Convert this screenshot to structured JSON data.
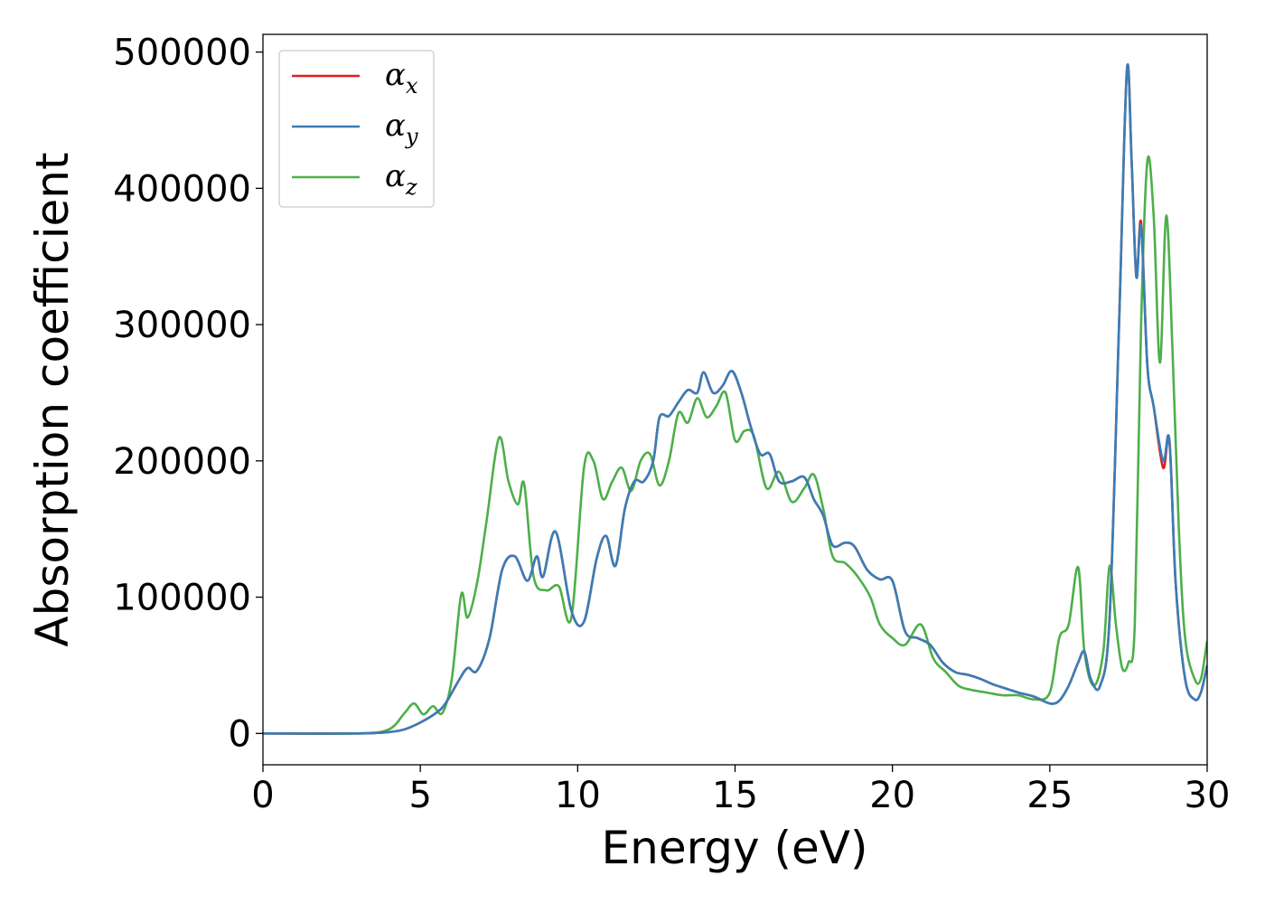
{
  "chart_data": {
    "type": "line",
    "xlabel": "Energy (eV)",
    "ylabel": "Absorption coefficient",
    "xlim": [
      0,
      30
    ],
    "ylim": [
      -23000,
      513000
    ],
    "xticks": [
      0,
      5,
      10,
      15,
      20,
      25,
      30
    ],
    "yticks": [
      0,
      100000,
      200000,
      300000,
      400000,
      500000
    ],
    "grid": false,
    "legend_position": "upper-left",
    "series": [
      {
        "name": "α_x",
        "legend_symbol": "α",
        "legend_subscript": "x",
        "color": "#e41a1c",
        "x": [
          0,
          3,
          4,
          4.5,
          5,
          5.5,
          5.8,
          6.2,
          6.5,
          6.8,
          7.2,
          7.6,
          8,
          8.4,
          8.7,
          8.9,
          9.3,
          9.8,
          10.2,
          10.6,
          10.9,
          11.2,
          11.5,
          11.8,
          12.1,
          12.4,
          12.6,
          12.9,
          13.2,
          13.5,
          13.8,
          14,
          14.3,
          14.6,
          14.9,
          15.2,
          15.5,
          15.8,
          16.1,
          16.4,
          16.8,
          17.2,
          17.5,
          17.8,
          18.1,
          18.5,
          18.8,
          19.2,
          19.6,
          20,
          20.4,
          20.8,
          21.2,
          21.6,
          22,
          22.4,
          22.8,
          23.2,
          23.6,
          24,
          24.5,
          25,
          25.3,
          25.6,
          25.9,
          26.1,
          26.3,
          26.6,
          26.9,
          27.2,
          27.45,
          27.6,
          27.75,
          27.9,
          28.1,
          28.3,
          28.6,
          28.8,
          29,
          29.3,
          29.6,
          29.8,
          30
        ],
        "y": [
          0,
          0,
          1000,
          3000,
          8000,
          15000,
          22000,
          38000,
          48000,
          46000,
          70000,
          120000,
          130000,
          112000,
          130000,
          115000,
          148000,
          90000,
          82000,
          128000,
          145000,
          123000,
          165000,
          185000,
          185000,
          200000,
          232000,
          233000,
          243000,
          252000,
          250000,
          265000,
          250000,
          255000,
          266000,
          250000,
          225000,
          205000,
          205000,
          185000,
          185000,
          188000,
          172000,
          160000,
          138000,
          140000,
          137000,
          120000,
          113000,
          112000,
          75000,
          70000,
          65000,
          52000,
          45000,
          43000,
          40000,
          36000,
          33000,
          30000,
          27000,
          22000,
          24000,
          35000,
          52000,
          60000,
          40000,
          35000,
          85000,
          300000,
          487000,
          420000,
          335000,
          375000,
          270000,
          240000,
          195000,
          215000,
          110000,
          40000,
          25000,
          30000,
          50000
        ]
      },
      {
        "name": "α_y",
        "legend_symbol": "α",
        "legend_subscript": "y",
        "color": "#377eb8",
        "x": [
          0,
          3,
          4,
          4.5,
          5,
          5.5,
          5.8,
          6.2,
          6.5,
          6.8,
          7.2,
          7.6,
          8,
          8.4,
          8.7,
          8.9,
          9.3,
          9.8,
          10.2,
          10.6,
          10.9,
          11.2,
          11.5,
          11.8,
          12.1,
          12.4,
          12.6,
          12.9,
          13.2,
          13.5,
          13.8,
          14,
          14.3,
          14.6,
          14.9,
          15.2,
          15.5,
          15.8,
          16.1,
          16.4,
          16.8,
          17.2,
          17.5,
          17.8,
          18.1,
          18.5,
          18.8,
          19.2,
          19.6,
          20,
          20.4,
          20.8,
          21.2,
          21.6,
          22,
          22.4,
          22.8,
          23.2,
          23.6,
          24,
          24.5,
          25,
          25.3,
          25.6,
          25.9,
          26.1,
          26.3,
          26.6,
          26.9,
          27.2,
          27.45,
          27.6,
          27.75,
          27.9,
          28.1,
          28.3,
          28.6,
          28.8,
          29,
          29.3,
          29.6,
          29.8,
          30
        ],
        "y": [
          0,
          0,
          1000,
          3000,
          8000,
          15000,
          22000,
          38000,
          48000,
          46000,
          70000,
          120000,
          130000,
          112000,
          130000,
          115000,
          148000,
          90000,
          82000,
          128000,
          145000,
          123000,
          165000,
          185000,
          185000,
          200000,
          232000,
          233000,
          243000,
          252000,
          250000,
          265000,
          250000,
          255000,
          266000,
          250000,
          225000,
          205000,
          205000,
          185000,
          185000,
          188000,
          172000,
          160000,
          138000,
          140000,
          137000,
          120000,
          113000,
          112000,
          75000,
          70000,
          65000,
          52000,
          45000,
          43000,
          40000,
          36000,
          33000,
          30000,
          27000,
          22000,
          24000,
          35000,
          52000,
          60000,
          40000,
          35000,
          85000,
          300000,
          487000,
          420000,
          335000,
          372000,
          270000,
          240000,
          200000,
          215000,
          110000,
          40000,
          25000,
          30000,
          50000
        ]
      },
      {
        "name": "α_z",
        "legend_symbol": "α",
        "legend_subscript": "z",
        "color": "#4daf4a",
        "x": [
          0,
          3,
          4,
          4.5,
          4.8,
          5.1,
          5.4,
          5.7,
          6,
          6.3,
          6.5,
          6.8,
          7.1,
          7.5,
          7.8,
          8.1,
          8.3,
          8.6,
          9,
          9.4,
          9.8,
          10.2,
          10.5,
          10.8,
          11.1,
          11.4,
          11.7,
          12,
          12.3,
          12.6,
          12.9,
          13.2,
          13.5,
          13.8,
          14.1,
          14.4,
          14.7,
          15,
          15.3,
          15.6,
          16,
          16.4,
          16.8,
          17.2,
          17.5,
          17.8,
          18.1,
          18.5,
          18.9,
          19.3,
          19.6,
          20,
          20.4,
          20.9,
          21.3,
          21.7,
          22.1,
          22.5,
          23,
          23.5,
          24,
          24.5,
          25,
          25.3,
          25.6,
          25.9,
          26.1,
          26.4,
          26.7,
          26.9,
          27.1,
          27.3,
          27.5,
          27.7,
          27.9,
          28.1,
          28.3,
          28.5,
          28.7,
          28.9,
          29.1,
          29.3,
          29.6,
          29.8,
          30
        ],
        "y": [
          0,
          0,
          3000,
          15000,
          22000,
          14000,
          20000,
          15000,
          40000,
          102000,
          85000,
          110000,
          155000,
          217000,
          185000,
          168000,
          183000,
          115000,
          105000,
          108000,
          85000,
          195000,
          200000,
          172000,
          185000,
          195000,
          178000,
          200000,
          205000,
          182000,
          200000,
          235000,
          228000,
          246000,
          232000,
          240000,
          250000,
          215000,
          222000,
          218000,
          180000,
          192000,
          170000,
          180000,
          190000,
          165000,
          130000,
          125000,
          115000,
          100000,
          80000,
          70000,
          65000,
          80000,
          55000,
          45000,
          35000,
          32000,
          30000,
          28000,
          28000,
          25000,
          30000,
          70000,
          80000,
          122000,
          60000,
          35000,
          60000,
          123000,
          80000,
          48000,
          52000,
          80000,
          300000,
          420000,
          380000,
          272000,
          380000,
          280000,
          150000,
          70000,
          40000,
          40000,
          68000
        ]
      }
    ]
  }
}
